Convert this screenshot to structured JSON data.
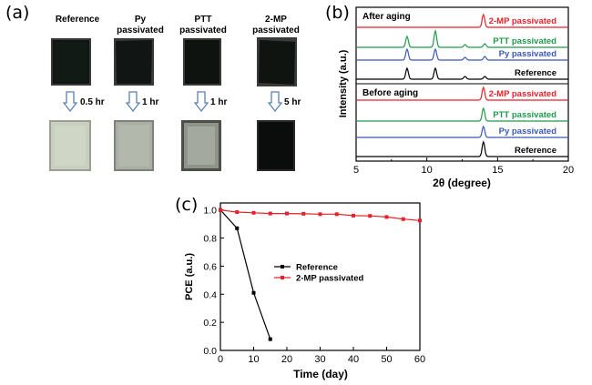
{
  "panel_a": {
    "label": "(a)",
    "columns": [
      {
        "name": "Reference",
        "time": "0.5 hr"
      },
      {
        "name": "Py\npassivated",
        "time": "1 hr"
      },
      {
        "name": "PTT\npassivated",
        "time": "1 hr"
      },
      {
        "name": "2-MP\npassivated",
        "time": "5 hr"
      }
    ]
  },
  "panel_b": {
    "label": "(b)",
    "after_label": "After aging",
    "before_label": "Before aging",
    "xlabel": "2θ (degree)",
    "ylabel": "Intensity (a.u.)",
    "xticks": [
      "5",
      "10",
      "15",
      "20"
    ],
    "series_after": [
      {
        "name": "2-MP passivated",
        "color": "#e8202a"
      },
      {
        "name": "PTT passivated",
        "color": "#1e9a4a"
      },
      {
        "name": "Py passivated",
        "color": "#3a58b8"
      },
      {
        "name": "Reference",
        "color": "#000000"
      }
    ],
    "series_before": [
      {
        "name": "2-MP passivated",
        "color": "#e8202a"
      },
      {
        "name": "PTT passivated",
        "color": "#1e9a4a"
      },
      {
        "name": "Py passivated",
        "color": "#3a58b8"
      },
      {
        "name": "Reference",
        "color": "#000000"
      }
    ]
  },
  "chart_data": {
    "type": "line",
    "label": "(c)",
    "xlabel": "Time (day)",
    "ylabel": "PCE (a.u.)",
    "xlim": [
      0,
      60
    ],
    "ylim": [
      0,
      1.05
    ],
    "xticks": [
      0,
      10,
      20,
      30,
      40,
      50,
      60
    ],
    "yticks": [
      0.0,
      0.2,
      0.4,
      0.6,
      0.8,
      1.0
    ],
    "legend_position": "center",
    "series": [
      {
        "name": "Reference",
        "color": "#000000",
        "x": [
          0,
          5,
          10,
          15
        ],
        "y": [
          1.0,
          0.87,
          0.41,
          0.08
        ]
      },
      {
        "name": "2-MP passivated",
        "color": "#e8202a",
        "x": [
          0,
          5,
          10,
          15,
          20,
          25,
          30,
          35,
          40,
          45,
          50,
          55,
          60
        ],
        "y": [
          1.0,
          0.985,
          0.98,
          0.975,
          0.975,
          0.973,
          0.97,
          0.97,
          0.96,
          0.958,
          0.95,
          0.935,
          0.925
        ]
      }
    ]
  }
}
